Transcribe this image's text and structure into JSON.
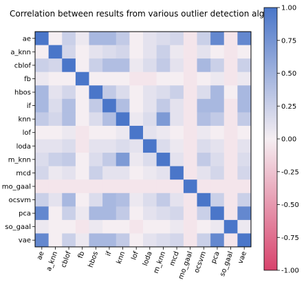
{
  "chart_data": {
    "type": "heatmap",
    "title": "Correlation between results from various outlier detection alg",
    "labels": [
      "ae",
      "a_knn",
      "cblof",
      "fb",
      "hbos",
      "if",
      "knn",
      "lof",
      "loda",
      "m_knn",
      "mcd",
      "mo_gaal",
      "ocsvm",
      "pca",
      "so_gaal",
      "vae"
    ],
    "matrix": [
      [
        1.0,
        0.0,
        0.25,
        0.05,
        0.45,
        0.45,
        0.3,
        0.0,
        0.1,
        0.15,
        0.2,
        -0.05,
        0.25,
        0.85,
        -0.05,
        0.85
      ],
      [
        0.0,
        1.0,
        0.2,
        0.0,
        0.1,
        0.15,
        0.2,
        0.0,
        0.1,
        0.25,
        0.05,
        -0.05,
        0.1,
        0.0,
        -0.05,
        0.0
      ],
      [
        0.25,
        0.2,
        1.0,
        0.0,
        0.25,
        0.4,
        0.4,
        0.05,
        0.15,
        0.3,
        0.1,
        -0.05,
        0.45,
        0.25,
        -0.05,
        0.25
      ],
      [
        0.05,
        0.0,
        0.0,
        1.0,
        0.0,
        0.0,
        0.0,
        -0.05,
        -0.05,
        0.0,
        0.0,
        -0.05,
        0.0,
        0.05,
        -0.05,
        0.05
      ],
      [
        0.45,
        0.1,
        0.2,
        0.0,
        1.0,
        0.3,
        0.15,
        0.0,
        0.1,
        0.15,
        0.25,
        -0.05,
        0.15,
        0.45,
        0.0,
        0.45
      ],
      [
        0.45,
        0.15,
        0.4,
        0.0,
        0.3,
        1.0,
        0.4,
        0.0,
        0.1,
        0.3,
        0.1,
        -0.05,
        0.45,
        0.45,
        -0.05,
        0.45
      ],
      [
        0.3,
        0.2,
        0.4,
        0.0,
        0.15,
        0.4,
        1.0,
        0.05,
        0.15,
        0.7,
        0.1,
        -0.05,
        0.4,
        0.3,
        -0.05,
        0.3
      ],
      [
        0.0,
        0.0,
        0.05,
        -0.05,
        0.0,
        0.0,
        0.05,
        1.0,
        0.1,
        0.05,
        0.0,
        -0.05,
        0.05,
        0.0,
        -0.05,
        0.0
      ],
      [
        0.1,
        0.1,
        0.15,
        -0.05,
        0.1,
        0.1,
        0.15,
        0.1,
        1.0,
        0.15,
        0.05,
        -0.05,
        0.15,
        0.1,
        -0.05,
        0.1
      ],
      [
        0.15,
        0.25,
        0.3,
        0.0,
        0.15,
        0.3,
        0.7,
        0.05,
        0.15,
        1.0,
        0.1,
        -0.05,
        0.3,
        0.15,
        -0.05,
        0.15
      ],
      [
        0.2,
        0.05,
        0.1,
        0.0,
        0.25,
        0.1,
        0.1,
        0.0,
        0.05,
        0.1,
        1.0,
        -0.05,
        0.1,
        0.2,
        -0.05,
        0.2
      ],
      [
        -0.05,
        -0.05,
        -0.05,
        -0.05,
        -0.05,
        -0.05,
        -0.05,
        -0.05,
        -0.05,
        -0.05,
        -0.05,
        1.0,
        -0.05,
        -0.05,
        -0.05,
        -0.05
      ],
      [
        0.25,
        0.1,
        0.45,
        0.0,
        0.15,
        0.45,
        0.4,
        0.05,
        0.15,
        0.3,
        0.1,
        -0.05,
        1.0,
        0.25,
        -0.05,
        0.25
      ],
      [
        0.85,
        0.0,
        0.25,
        0.05,
        0.45,
        0.45,
        0.3,
        0.0,
        0.1,
        0.15,
        0.2,
        -0.05,
        0.25,
        1.0,
        -0.05,
        0.85
      ],
      [
        0.05,
        0.0,
        0.0,
        -0.05,
        0.05,
        0.0,
        0.0,
        -0.05,
        0.0,
        0.0,
        0.05,
        -0.05,
        0.0,
        0.05,
        1.0,
        0.05
      ],
      [
        0.85,
        0.0,
        0.25,
        0.05,
        0.45,
        0.45,
        0.3,
        0.0,
        0.1,
        0.15,
        0.2,
        -0.05,
        0.25,
        0.85,
        -0.05,
        1.0
      ]
    ],
    "colorbar": {
      "min": -1.0,
      "max": 1.0,
      "ticks": [
        "1.00",
        "0.75",
        "0.50",
        "0.25",
        "0.00",
        "-0.25",
        "-0.50",
        "-0.75",
        "-1.00"
      ],
      "colors": {
        "positive": "#4a76c9",
        "zero": "#f5eef2",
        "negative": "#d8436c"
      }
    }
  }
}
